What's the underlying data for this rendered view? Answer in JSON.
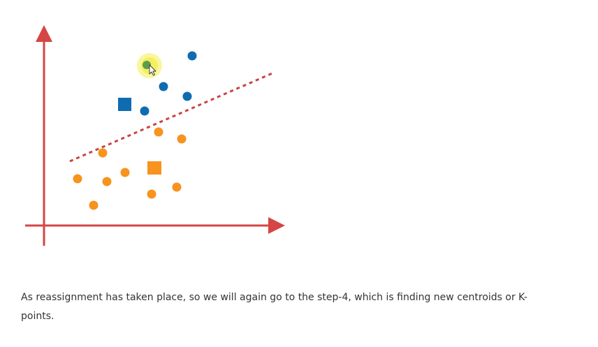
{
  "diagram": {
    "colors": {
      "axis": "#d64545",
      "boundary": "#c94444",
      "cluster_a": "#0f6cb0",
      "cluster_b": "#f7931e",
      "highlighted_point": "#5a9e4b",
      "highlight_glow": "#f4ef4a"
    },
    "cluster_a_centroid_shape": "square",
    "cluster_b_centroid_shape": "square",
    "boundary_style": "dashed",
    "cursor_icon": "pointer-cursor-icon"
  },
  "caption": {
    "text": "As reassignment has taken place, so we will again go to the step-4, which is finding new centroids or K-points."
  }
}
